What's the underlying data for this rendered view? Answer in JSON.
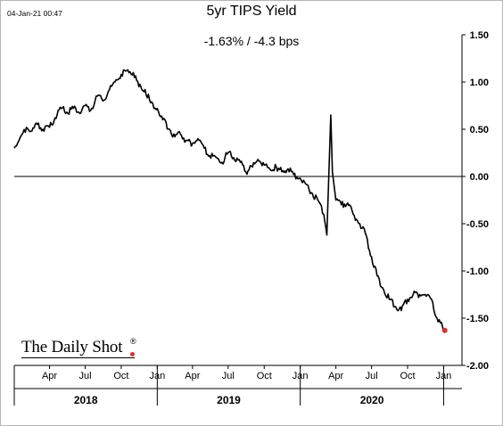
{
  "header": {
    "timestamp": "04-Jan-21 00:47",
    "title": "5yr TIPS Yield",
    "subtitle": "-1.63%  /  -4.3 bps"
  },
  "logo": {
    "text": "The Daily Shot",
    "mark": "®",
    "dot_color": "#e03030"
  },
  "chart_data": {
    "type": "line",
    "title": "5yr TIPS Yield",
    "xlabel": "",
    "ylabel": "",
    "ylim": [
      -2.0,
      1.5
    ],
    "y_ticks": [
      "1.50",
      "1.00",
      "0.50",
      "0.00",
      "-0.50",
      "-1.00",
      "-1.50",
      "-2.00"
    ],
    "x_month_ticks": [
      "Apr",
      "Jul",
      "Oct",
      "Jan",
      "Apr",
      "Jul",
      "Oct",
      "Jan",
      "Apr",
      "Jul",
      "Oct",
      "Jan"
    ],
    "x_years": [
      "2018",
      "2019",
      "2020"
    ],
    "grid": false,
    "reference_line": 0.0,
    "line_color": "#000000",
    "last_point_color": "#e03030",
    "series": [
      {
        "x": [
          "2018-01-01",
          "2018-01-15",
          "2018-02-01",
          "2018-02-15",
          "2018-03-01",
          "2018-03-15",
          "2018-04-01",
          "2018-04-15",
          "2018-05-01",
          "2018-05-15",
          "2018-06-01",
          "2018-06-15",
          "2018-07-01",
          "2018-07-15",
          "2018-08-01",
          "2018-08-15",
          "2018-09-01",
          "2018-09-15",
          "2018-10-01",
          "2018-10-15",
          "2018-11-01",
          "2018-11-15",
          "2018-12-01",
          "2018-12-15",
          "2019-01-01",
          "2019-01-15",
          "2019-02-01",
          "2019-02-15",
          "2019-03-01",
          "2019-03-15",
          "2019-04-01",
          "2019-04-15",
          "2019-05-01",
          "2019-05-15",
          "2019-06-01",
          "2019-06-15",
          "2019-07-01",
          "2019-07-15",
          "2019-08-01",
          "2019-08-15",
          "2019-09-01",
          "2019-09-15",
          "2019-10-01",
          "2019-10-15",
          "2019-11-01",
          "2019-11-15",
          "2019-12-01",
          "2019-12-15",
          "2020-01-01",
          "2020-01-15",
          "2020-02-01",
          "2020-02-15",
          "2020-03-01",
          "2020-03-09",
          "2020-03-13",
          "2020-03-19",
          "2020-03-23",
          "2020-04-01",
          "2020-04-15",
          "2020-05-01",
          "2020-05-15",
          "2020-06-01",
          "2020-06-15",
          "2020-07-01",
          "2020-07-15",
          "2020-08-01",
          "2020-08-15",
          "2020-09-01",
          "2020-09-15",
          "2020-10-01",
          "2020-10-15",
          "2020-11-01",
          "2020-11-15",
          "2020-12-01",
          "2020-12-15",
          "2021-01-04"
        ],
        "values": [
          0.3,
          0.4,
          0.52,
          0.48,
          0.55,
          0.5,
          0.52,
          0.62,
          0.72,
          0.68,
          0.72,
          0.68,
          0.75,
          0.7,
          0.85,
          0.8,
          0.92,
          1.0,
          1.08,
          1.12,
          1.1,
          0.95,
          0.92,
          0.78,
          0.72,
          0.6,
          0.5,
          0.42,
          0.45,
          0.38,
          0.35,
          0.4,
          0.3,
          0.22,
          0.2,
          0.15,
          0.25,
          0.2,
          0.15,
          0.05,
          0.1,
          0.18,
          0.12,
          0.08,
          0.1,
          0.05,
          0.08,
          0.02,
          -0.02,
          -0.08,
          -0.18,
          -0.25,
          -0.4,
          -0.62,
          -0.1,
          0.65,
          0.05,
          -0.25,
          -0.3,
          -0.28,
          -0.4,
          -0.5,
          -0.6,
          -0.85,
          -1.05,
          -1.2,
          -1.3,
          -1.38,
          -1.42,
          -1.3,
          -1.25,
          -1.25,
          -1.25,
          -1.3,
          -1.5,
          -1.63
        ]
      }
    ]
  }
}
